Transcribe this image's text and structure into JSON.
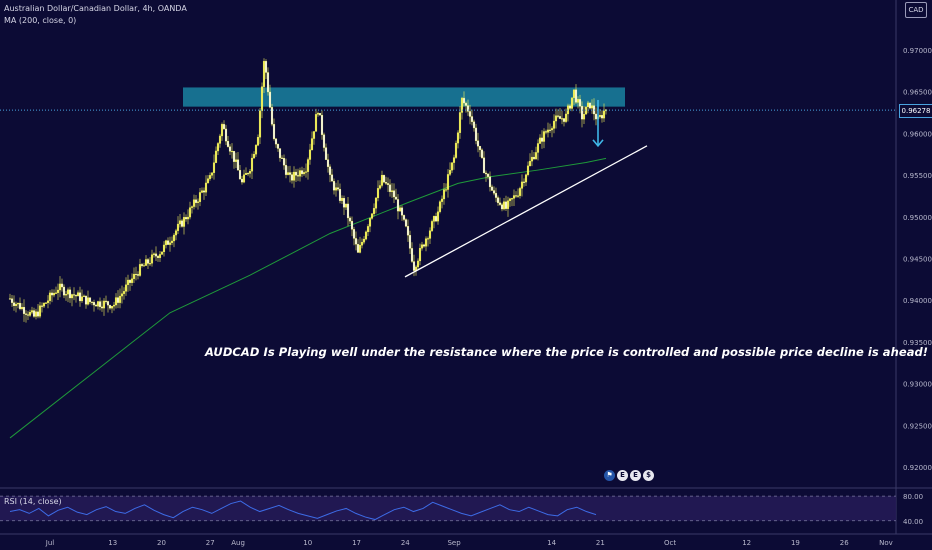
{
  "header": {
    "symbol_line": "Australian Dollar/Canadian Dollar, 4h, OANDA",
    "ma_line": "MA (200, close, 0)",
    "currency_badge": "CAD"
  },
  "annotation": "AUDCAD Is Playing well under the resistance where the price is controlled and possible price decline is ahead!",
  "current_price_label": "0.96278",
  "event_icons": [
    "flag-icon",
    "E",
    "E",
    "dividend-icon"
  ],
  "colors": {
    "background": "#0c0b35",
    "candle": "#f5f35a",
    "ma": "#1f9a3a",
    "resistance_zone": "#1a8aa8",
    "rsi_line": "#3d6be6",
    "rsi_band": "#241a55",
    "arrow": "#3fb6e6",
    "trendline": "#ffffff"
  },
  "chart_data": [
    {
      "type": "candlestick",
      "title": "Australian Dollar/Canadian Dollar, 4h, OANDA",
      "y_tick_labels": [
        "0.92000",
        "0.92500",
        "0.93000",
        "0.93500",
        "0.94000",
        "0.94500",
        "0.95000",
        "0.95500",
        "0.96000",
        "0.96500",
        "0.97000"
      ],
      "x_tick_labels": [
        "Jul",
        "13",
        "20",
        "27",
        "Aug",
        "10",
        "17",
        "24",
        "Sep",
        "14",
        "21",
        "Oct",
        "12",
        "19",
        "26",
        "Nov"
      ],
      "ylim": [
        0.9175,
        0.9755
      ],
      "grid": false,
      "resistance_zone": [
        0.9632,
        0.9655
      ],
      "current_price": 0.96278,
      "trendline": {
        "from": [
          "24",
          0.9428
        ],
        "to": [
          "Oct",
          0.9585
        ]
      },
      "projection_arrow": {
        "from": 0.964,
        "to": 0.9585
      },
      "close_path": [
        [
          0,
          0.9402
        ],
        [
          3,
          0.938
        ],
        [
          6,
          0.9415
        ],
        [
          10,
          0.9398
        ],
        [
          13,
          0.9395
        ],
        [
          16,
          0.9435
        ],
        [
          19,
          0.946
        ],
        [
          22,
          0.95
        ],
        [
          25,
          0.9545
        ],
        [
          26.5,
          0.961
        ],
        [
          28,
          0.957
        ],
        [
          29,
          0.954
        ],
        [
          30,
          0.956
        ],
        [
          31,
          0.96
        ],
        [
          31.8,
          0.969
        ],
        [
          33,
          0.959
        ],
        [
          35,
          0.9545
        ],
        [
          37,
          0.956
        ],
        [
          38.5,
          0.963
        ],
        [
          40,
          0.9545
        ],
        [
          42,
          0.951
        ],
        [
          43.5,
          0.9455
        ],
        [
          45,
          0.95
        ],
        [
          46.5,
          0.9545
        ],
        [
          48,
          0.9525
        ],
        [
          49.5,
          0.9485
        ],
        [
          50.5,
          0.944
        ],
        [
          52,
          0.9475
        ],
        [
          53.5,
          0.9505
        ],
        [
          55.5,
          0.957
        ],
        [
          56.5,
          0.964
        ],
        [
          57.5,
          0.9625
        ],
        [
          59,
          0.9565
        ],
        [
          60.5,
          0.9525
        ],
        [
          62,
          0.951
        ],
        [
          63.5,
          0.953
        ],
        [
          65,
          0.9565
        ],
        [
          66.5,
          0.9595
        ],
        [
          68,
          0.9615
        ],
        [
          69.5,
          0.962
        ],
        [
          70.5,
          0.965
        ],
        [
          71.5,
          0.962
        ],
        [
          72.5,
          0.9635
        ],
        [
          73.5,
          0.9615
        ],
        [
          74.5,
          0.963
        ]
      ],
      "ma_path": [
        [
          0,
          0.9235
        ],
        [
          10,
          0.931
        ],
        [
          20,
          0.9385
        ],
        [
          30,
          0.943
        ],
        [
          40,
          0.948
        ],
        [
          50,
          0.9518
        ],
        [
          56,
          0.954
        ],
        [
          60,
          0.9548
        ],
        [
          66,
          0.9556
        ],
        [
          72,
          0.9565
        ],
        [
          74.5,
          0.957
        ]
      ]
    },
    {
      "type": "line",
      "title": "RSI (14, close)",
      "y_tick_labels": [
        "80.00",
        "40.00"
      ],
      "ylim": [
        25,
        90
      ],
      "band": [
        40,
        80
      ],
      "values": [
        55,
        58,
        52,
        60,
        48,
        57,
        62,
        54,
        50,
        58,
        63,
        55,
        52,
        60,
        66,
        57,
        50,
        45,
        55,
        62,
        58,
        52,
        60,
        68,
        72,
        62,
        55,
        60,
        65,
        58,
        52,
        48,
        44,
        50,
        56,
        60,
        52,
        46,
        42,
        50,
        58,
        62,
        55,
        60,
        70,
        64,
        58,
        52,
        48,
        54,
        60,
        66,
        58,
        55,
        62,
        56,
        50,
        48,
        58,
        62,
        55,
        50
      ]
    }
  ]
}
